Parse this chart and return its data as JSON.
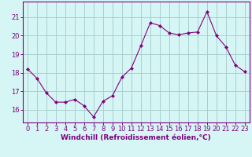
{
  "x": [
    0,
    1,
    2,
    3,
    4,
    5,
    6,
    7,
    8,
    9,
    10,
    11,
    12,
    13,
    14,
    15,
    16,
    17,
    18,
    19,
    20,
    21,
    22,
    23
  ],
  "y": [
    18.2,
    17.7,
    16.9,
    16.4,
    16.4,
    16.55,
    16.2,
    15.6,
    16.45,
    16.75,
    17.75,
    18.25,
    19.45,
    20.7,
    20.55,
    20.15,
    20.05,
    20.15,
    20.2,
    21.3,
    20.0,
    19.4,
    18.4,
    18.05
  ],
  "line_color": "#800080",
  "marker": "D",
  "marker_size": 2,
  "bg_color": "#d6f5f5",
  "grid_color": "#aacfcf",
  "xlabel": "Windchill (Refroidissement éolien,°C)",
  "ylim": [
    15.3,
    21.85
  ],
  "xlim": [
    -0.5,
    23.5
  ],
  "xtick_labels": [
    "0",
    "1",
    "2",
    "3",
    "4",
    "5",
    "6",
    "7",
    "8",
    "9",
    "10",
    "11",
    "12",
    "13",
    "14",
    "15",
    "16",
    "17",
    "18",
    "19",
    "20",
    "21",
    "22",
    "23"
  ],
  "ytick_values": [
    16,
    17,
    18,
    19,
    20,
    21
  ],
  "xlabel_fontsize": 6.5,
  "tick_fontsize": 6.0
}
